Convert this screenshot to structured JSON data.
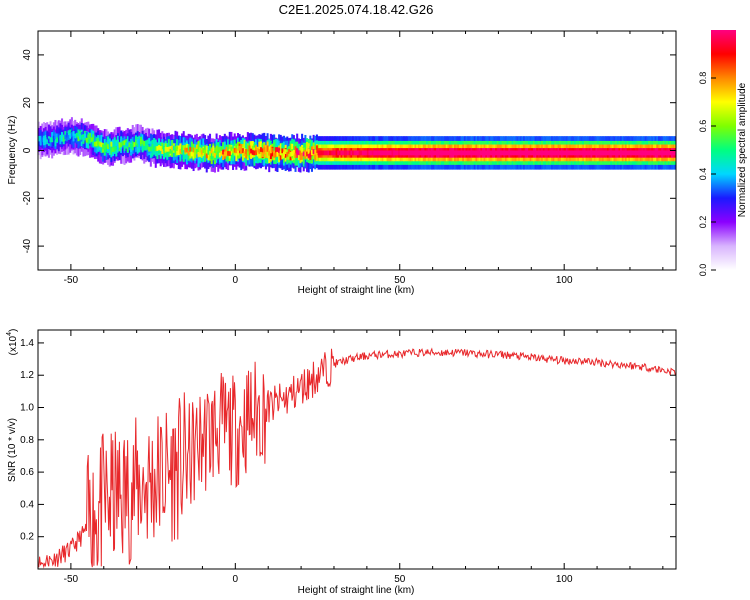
{
  "title": "C2E1.2025.074.18.42.G26",
  "chart_data": [
    {
      "type": "heatmap",
      "xlabel": "Height of straight line (km)",
      "ylabel": "Frequency (Hz)",
      "xlim": [
        -60,
        134
      ],
      "ylim": [
        -50,
        50
      ],
      "xticks": [
        -50,
        0,
        50,
        100
      ],
      "yticks": [
        -40,
        -20,
        0,
        20,
        40
      ],
      "colorbar": {
        "label": "Normalized spectral amplitude",
        "range": [
          0,
          1
        ],
        "ticks": [
          "0.0",
          "0.2",
          "0.4",
          "0.6",
          "0.8"
        ],
        "colormap": [
          "#ffffff",
          "#d8b4fe",
          "#8b00ff",
          "#1a1aff",
          "#00d7ff",
          "#00ff80",
          "#7fff00",
          "#ffff00",
          "#ff8800",
          "#ff0000",
          "#ff0080"
        ]
      },
      "ridge": {
        "x": [
          -60,
          -50,
          -45,
          -40,
          -35,
          -30,
          -25,
          -20,
          -15,
          -10,
          -5,
          0,
          10,
          20,
          30,
          40,
          50,
          60,
          70,
          80,
          90,
          100,
          110,
          120,
          134
        ],
        "frequency": [
          4,
          6,
          5,
          1,
          2,
          3,
          1,
          0,
          0,
          -1,
          -1,
          0,
          -1,
          -1,
          -1,
          -1,
          -1,
          -1,
          -1,
          -1,
          -1,
          -1,
          -1,
          -1,
          -1
        ],
        "amplitude": [
          0.35,
          0.4,
          0.45,
          0.5,
          0.45,
          0.45,
          0.5,
          0.55,
          0.6,
          0.6,
          0.65,
          0.7,
          0.75,
          0.8,
          0.85,
          0.9,
          0.92,
          0.95,
          0.95,
          0.95,
          0.95,
          0.95,
          0.95,
          0.95,
          0.95
        ]
      }
    },
    {
      "type": "line",
      "xlabel": "Height of straight line (km)",
      "ylabel": "SNR (10 * v/v)",
      "scale_label": "(x10",
      "scale_exp": "4",
      "xlim": [
        -60,
        134
      ],
      "ylim": [
        0,
        1.48
      ],
      "xticks": [
        -50,
        0,
        50,
        100
      ],
      "yticks": [
        "0.2",
        "0.4",
        "0.6",
        "0.8",
        "1.0",
        "1.2",
        "1.4"
      ],
      "color": "#e8282b",
      "series": [
        {
          "x": [
            -60,
            -55,
            -50,
            -45,
            -40,
            -35,
            -30,
            -25,
            -20,
            -15,
            -10,
            -5,
            0,
            5,
            10,
            15,
            20,
            25,
            30,
            35,
            40,
            45,
            50,
            55,
            60,
            65,
            70,
            75,
            80,
            85,
            90,
            95,
            100,
            105,
            110,
            115,
            120,
            125,
            130,
            134
          ],
          "y": [
            0.03,
            0.06,
            0.12,
            0.25,
            0.4,
            0.45,
            0.5,
            0.55,
            0.6,
            0.65,
            0.8,
            0.88,
            0.85,
            0.95,
            1.0,
            1.05,
            1.12,
            1.2,
            1.27,
            1.3,
            1.32,
            1.33,
            1.33,
            1.34,
            1.34,
            1.34,
            1.34,
            1.33,
            1.33,
            1.32,
            1.31,
            1.3,
            1.29,
            1.29,
            1.28,
            1.27,
            1.26,
            1.25,
            1.23,
            1.22
          ]
        }
      ]
    }
  ]
}
